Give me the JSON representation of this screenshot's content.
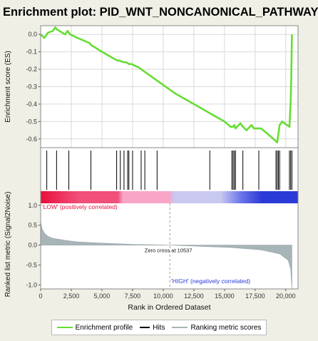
{
  "chart_data": {
    "type": "line",
    "title": "Enrichment plot: PID_WNT_NONCANONICAL_PATHWAY",
    "xlabel": "Rank in Ordered Dataset",
    "xlim": [
      0,
      21000
    ],
    "x_ticks": [
      "0",
      "2,500",
      "5,000",
      "7,500",
      "10,000",
      "12,500",
      "15,000",
      "17,500",
      "20,000"
    ],
    "x_tick_values": [
      0,
      2500,
      5000,
      7500,
      10000,
      12500,
      15000,
      17500,
      20000
    ],
    "es_panel": {
      "ylabel": "Enrichment score (ES)",
      "ylim": [
        -0.65,
        0.05
      ],
      "y_ticks": [
        "0.0",
        "-0.1",
        "-0.2",
        "-0.3",
        "-0.4",
        "-0.5",
        "-0.6"
      ],
      "y_tick_values": [
        0.0,
        -0.1,
        -0.2,
        -0.3,
        -0.4,
        -0.5,
        -0.6
      ],
      "grid": true,
      "series": [
        {
          "name": "Enrichment profile",
          "color": "#66dd33",
          "x": [
            0,
            300,
            600,
            1000,
            1200,
            1300,
            2000,
            2200,
            2400,
            3000,
            4000,
            4100,
            5000,
            6000,
            6300,
            6400,
            6600,
            6800,
            7000,
            7200,
            7400,
            8000,
            9000,
            10000,
            11000,
            12000,
            13000,
            14000,
            15000,
            15500,
            15700,
            15800,
            15900,
            16300,
            16500,
            16800,
            17200,
            17400,
            18000,
            19000,
            19300,
            19500,
            19700,
            20300,
            20400,
            20450,
            20500
          ],
          "y": [
            0.0,
            -0.02,
            0.01,
            0.02,
            0.04,
            0.03,
            0.0,
            0.02,
            0.0,
            -0.02,
            -0.05,
            -0.06,
            -0.1,
            -0.14,
            -0.15,
            -0.15,
            -0.155,
            -0.16,
            -0.16,
            -0.17,
            -0.17,
            -0.19,
            -0.24,
            -0.29,
            -0.34,
            -0.38,
            -0.42,
            -0.46,
            -0.5,
            -0.53,
            -0.53,
            -0.52,
            -0.54,
            -0.51,
            -0.53,
            -0.55,
            -0.52,
            -0.54,
            -0.54,
            -0.6,
            -0.62,
            -0.52,
            -0.5,
            -0.53,
            -0.38,
            -0.25,
            0.0
          ]
        }
      ]
    },
    "hits": {
      "name": "Hits",
      "color": "#000000",
      "positions": [
        500,
        1300,
        2300,
        4100,
        6200,
        6500,
        6800,
        7100,
        7200,
        7500,
        8200,
        8500,
        9500,
        13800,
        15600,
        15700,
        15800,
        15900,
        16500,
        17800,
        19200,
        19300,
        19400,
        19500,
        20300,
        20400,
        20500
      ]
    },
    "rank_band_colors": [
      "#e8103c",
      "#f0507a",
      "#f7a6c8",
      "#c8c8f0",
      "#6a74e8",
      "#2a3ad6"
    ],
    "metric_panel": {
      "name": "Ranking metric scores",
      "ylabel": "Ranked list metric (Signal2Noise)",
      "ylim": [
        -1.1,
        1.05
      ],
      "y_ticks": [
        "1.0",
        "0.5",
        "0.0",
        "-0.5",
        "-1.0"
      ],
      "y_tick_values": [
        1.0,
        0.5,
        0.0,
        -0.5,
        -1.0
      ],
      "fill_color": "#a7b4b8",
      "x": [
        0,
        100,
        300,
        600,
        1000,
        2000,
        3000,
        5000,
        7500,
        10537,
        13000,
        15500,
        18000,
        19500,
        20200,
        20400,
        20500
      ],
      "y": [
        0.6,
        0.42,
        0.3,
        0.22,
        0.17,
        0.12,
        0.08,
        0.05,
        0.02,
        0.0,
        -0.03,
        -0.06,
        -0.12,
        -0.22,
        -0.38,
        -0.6,
        -1.1
      ],
      "zero_cross_rank": 10537,
      "zero_cross_label": "Zero cross at 10537",
      "low_label": "'LOW' (positively correlated)",
      "high_label": "'HIGH' (negatively correlated)",
      "low_color": "#e8103c",
      "high_color": "#2a3ad6"
    },
    "legend": [
      {
        "label": "Enrichment profile",
        "color": "#66dd33"
      },
      {
        "label": "Hits",
        "color": "#000000"
      },
      {
        "label": "Ranking metric scores",
        "color": "#a7b4b8"
      }
    ]
  }
}
